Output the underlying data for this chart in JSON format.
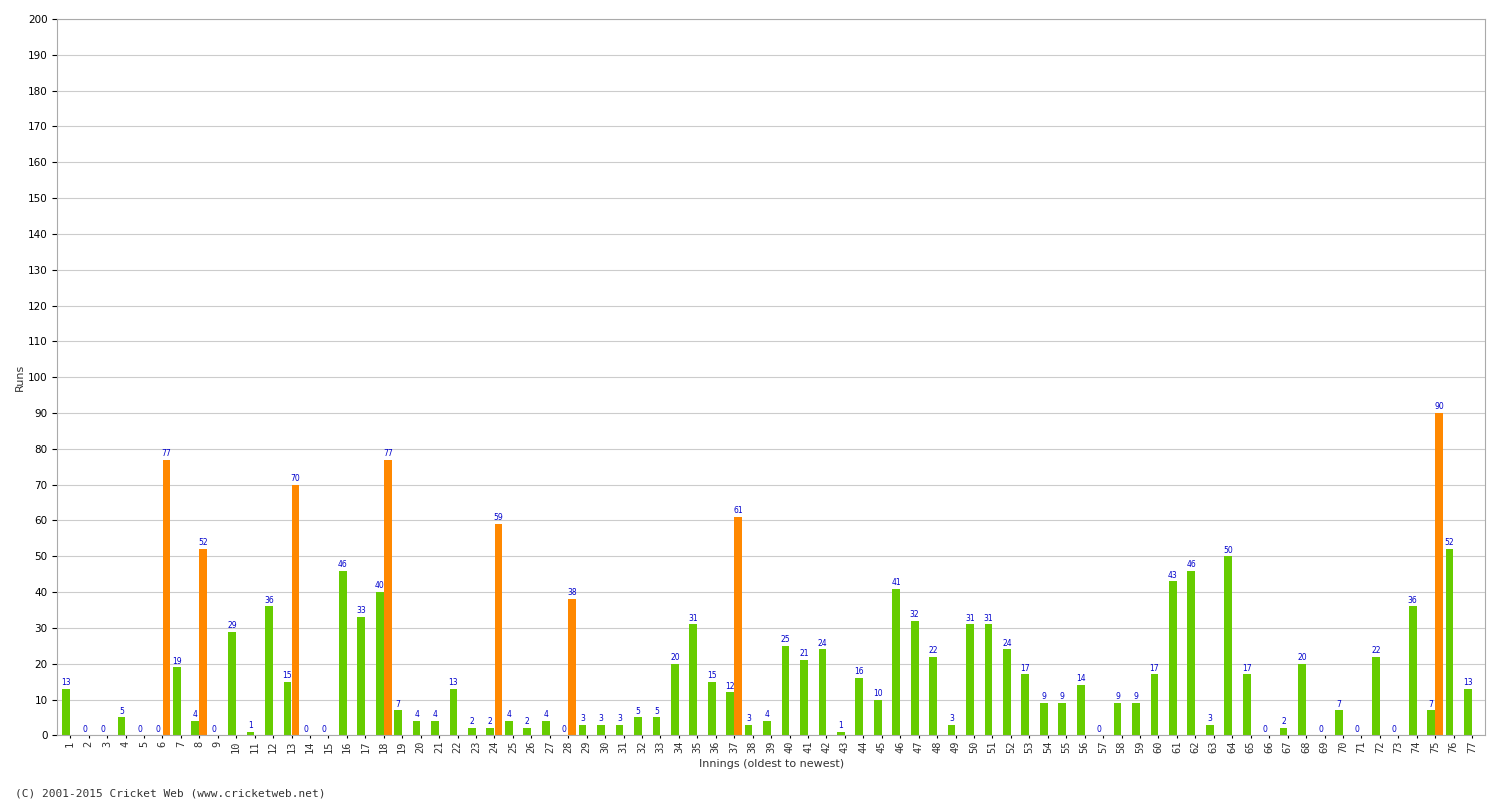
{
  "xlabel": "Innings (oldest to newest)",
  "ylabel": "Runs",
  "ylim": [
    0,
    200
  ],
  "yticks": [
    0,
    10,
    20,
    30,
    40,
    50,
    60,
    70,
    80,
    90,
    100,
    110,
    120,
    130,
    140,
    150,
    160,
    170,
    180,
    190,
    200
  ],
  "innings_labels": [
    "1",
    "2",
    "3",
    "4",
    "5",
    "6",
    "7",
    "8",
    "9",
    "10",
    "11",
    "12",
    "13",
    "14",
    "15",
    "16",
    "17",
    "18",
    "19",
    "20",
    "21",
    "22",
    "23",
    "24",
    "25",
    "26",
    "27",
    "28",
    "29",
    "30",
    "31",
    "32",
    "33",
    "34",
    "35",
    "36",
    "37",
    "38",
    "39",
    "40",
    "41",
    "42",
    "43",
    "44",
    "45",
    "46",
    "47",
    "48",
    "49",
    "50",
    "51",
    "52",
    "53",
    "54",
    "55",
    "56",
    "57",
    "58",
    "59",
    "60",
    "61",
    "62",
    "63",
    "64",
    "65",
    "66",
    "67",
    "68",
    "69",
    "70",
    "71",
    "72",
    "73",
    "74",
    "75",
    "76",
    "77"
  ],
  "bar1_values": [
    13,
    0,
    0,
    5,
    0,
    0,
    19,
    4,
    0,
    29,
    1,
    36,
    15,
    0,
    0,
    46,
    33,
    40,
    7,
    4,
    4,
    13,
    2,
    2,
    4,
    2,
    4,
    0,
    3,
    3,
    3,
    5,
    5,
    20,
    31,
    15,
    12,
    3,
    4,
    25,
    21,
    24,
    1,
    16,
    10,
    41,
    32,
    22,
    3,
    31,
    31,
    24,
    17,
    9,
    9,
    14,
    0,
    9,
    9,
    17,
    43,
    46,
    3,
    50,
    17,
    0,
    2,
    20,
    0,
    7,
    0,
    22,
    0,
    36,
    7,
    52,
    13
  ],
  "bar2_values": [
    0,
    0,
    0,
    0,
    0,
    77,
    0,
    52,
    0,
    0,
    0,
    0,
    70,
    0,
    0,
    0,
    0,
    77,
    0,
    0,
    0,
    0,
    0,
    59,
    0,
    0,
    0,
    38,
    0,
    0,
    0,
    0,
    0,
    0,
    0,
    0,
    61,
    0,
    0,
    0,
    0,
    0,
    0,
    0,
    0,
    0,
    0,
    0,
    0,
    0,
    0,
    0,
    0,
    0,
    0,
    0,
    0,
    0,
    0,
    0,
    0,
    0,
    0,
    0,
    0,
    0,
    0,
    0,
    0,
    0,
    0,
    0,
    0,
    0,
    90,
    0,
    0
  ],
  "bar1_color": "#66cc00",
  "bar2_color": "#ff8800",
  "annotation_color": "#0000cc",
  "grid_color": "#cccccc",
  "bg_color": "#ffffff",
  "footer": "(C) 2001-2015 Cricket Web (www.cricketweb.net)",
  "footer_fontsize": 8,
  "title_fontsize": 11,
  "xlabel_fontsize": 8,
  "ylabel_fontsize": 8,
  "tick_fontsize": 7.5,
  "ann_fontsize": 5.5
}
